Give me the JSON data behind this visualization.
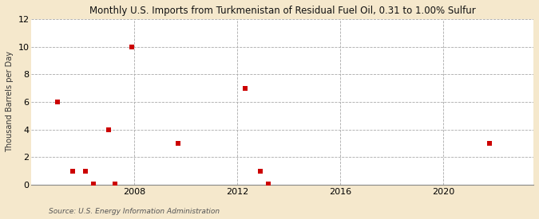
{
  "title": "Monthly U.S. Imports from Turkmenistan of Residual Fuel Oil, 0.31 to 1.00% Sulfur",
  "ylabel": "Thousand Barrels per Day",
  "source": "Source: U.S. Energy Information Administration",
  "fig_background_color": "#f5e8cc",
  "plot_background_color": "#ffffff",
  "marker_color": "#cc0000",
  "marker_size": 18,
  "xlim": [
    2004.0,
    2023.5
  ],
  "ylim": [
    0,
    12
  ],
  "yticks": [
    0,
    2,
    4,
    6,
    8,
    10,
    12
  ],
  "xticks": [
    2008,
    2012,
    2016,
    2020
  ],
  "data_points": [
    [
      2005.0,
      6
    ],
    [
      2005.6,
      1
    ],
    [
      2006.1,
      1
    ],
    [
      2006.4,
      0.05
    ],
    [
      2007.0,
      4
    ],
    [
      2007.25,
      0.05
    ],
    [
      2007.9,
      10
    ],
    [
      2009.7,
      3
    ],
    [
      2012.3,
      7
    ],
    [
      2012.9,
      1
    ],
    [
      2013.2,
      0.05
    ],
    [
      2021.8,
      3
    ]
  ]
}
